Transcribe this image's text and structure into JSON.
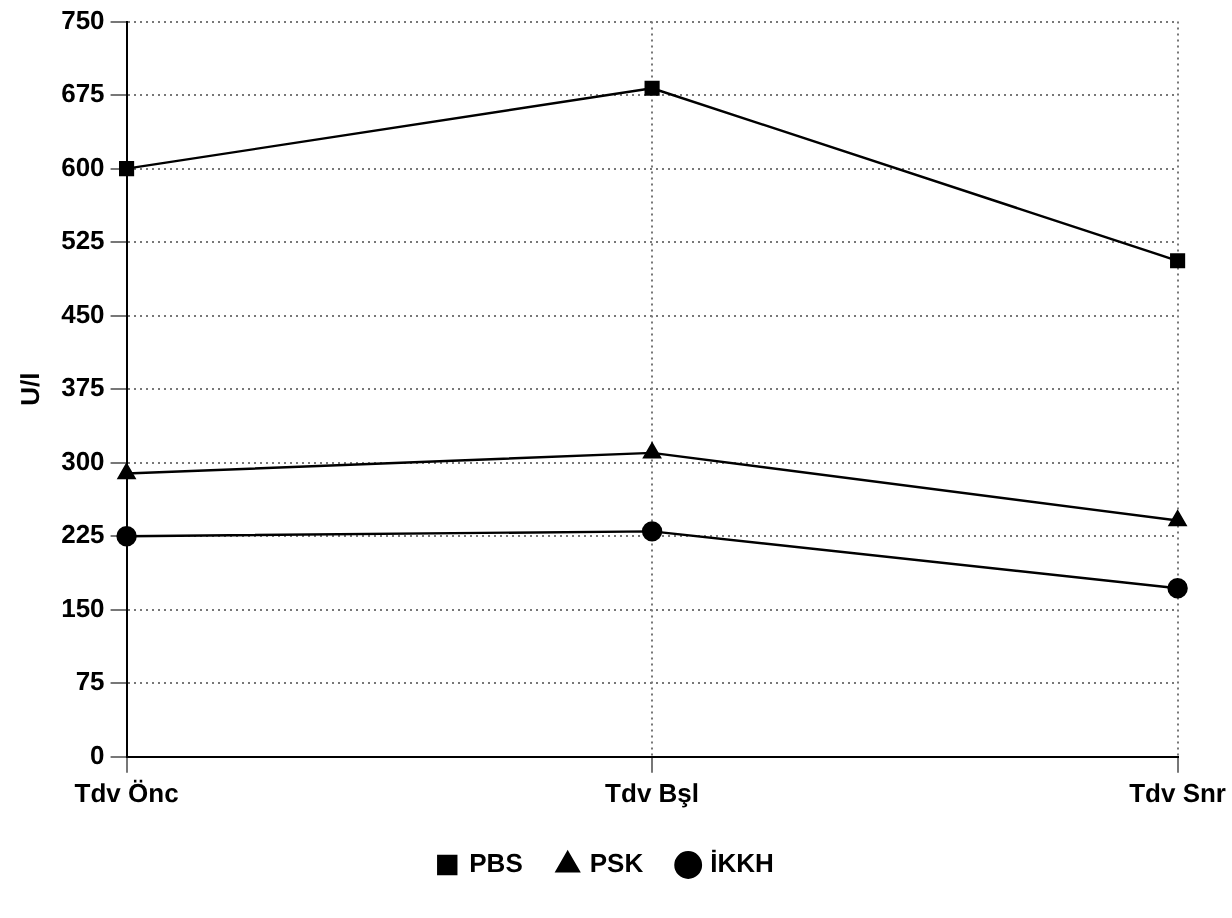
{
  "chart_data": {
    "type": "line",
    "ylabel": "U/l",
    "categories": [
      "Tdv Önc",
      "Tdv Bşl",
      "Tdv Snr"
    ],
    "series": [
      {
        "name": "PBS",
        "color": "#000000",
        "marker": "square",
        "values": [
          600,
          682,
          506
        ]
      },
      {
        "name": "PSK",
        "color": "#000000",
        "marker": "triangle",
        "values": [
          289,
          310,
          241
        ]
      },
      {
        "name": "İKKH",
        "color": "#000000",
        "marker": "circle",
        "values": [
          225,
          230,
          172
        ]
      }
    ],
    "ylim": [
      0,
      750
    ],
    "yticks": [
      0,
      75,
      150,
      225,
      300,
      375,
      450,
      525,
      600,
      675,
      750
    ],
    "grid": true,
    "legend": "bottom",
    "line_style": "solid"
  }
}
